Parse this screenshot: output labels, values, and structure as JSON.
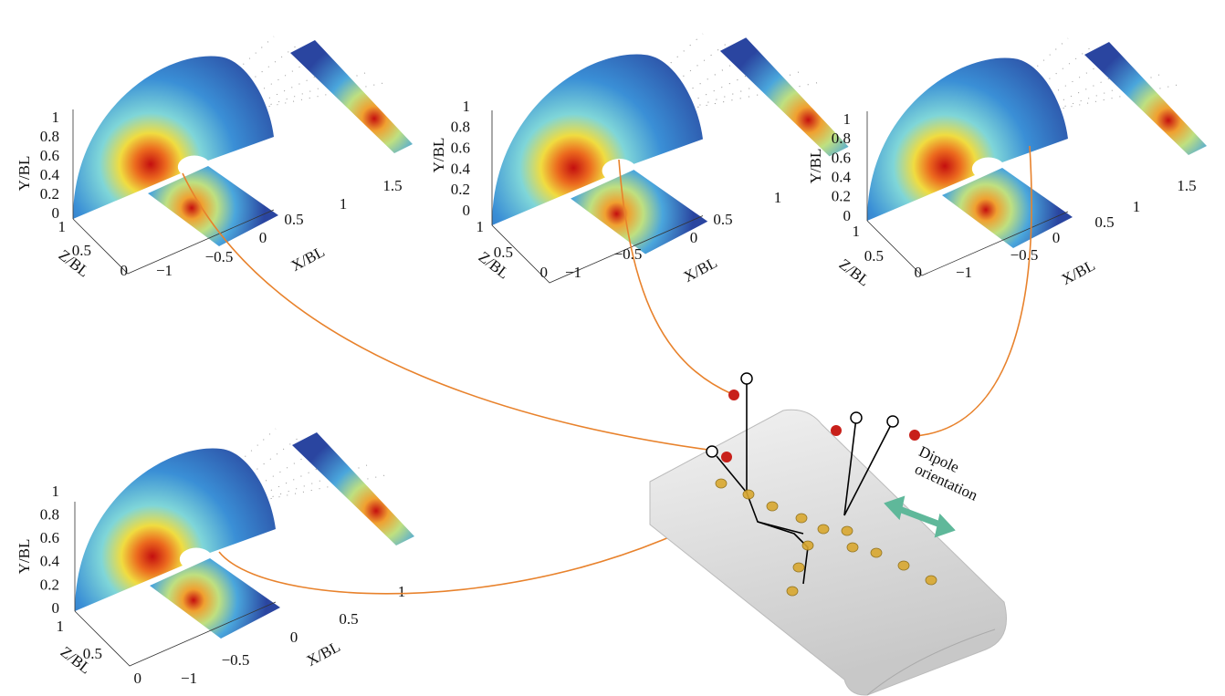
{
  "panels": [
    {
      "y_label": "Y/BL",
      "z_label": "Z/BL",
      "x_label": "X/BL",
      "y_ticks": [
        "0",
        "0.2",
        "0.4",
        "0.6",
        "0.8",
        "1"
      ],
      "z_ticks": [
        "1",
        "0.5",
        "0"
      ],
      "x_ticks": [
        "−1",
        "−0.5",
        "0",
        "0.5",
        "1",
        "1.5"
      ]
    },
    {
      "y_label": "Y/BL",
      "z_label": "Z/BL",
      "x_label": "X/BL",
      "y_ticks": [
        "0",
        "0.2",
        "0.4",
        "0.6",
        "0.8",
        "1"
      ],
      "z_ticks": [
        "1",
        "0.5",
        "0"
      ],
      "x_ticks": [
        "−1",
        "−0.5",
        "0",
        "0.5",
        "1"
      ]
    },
    {
      "y_label": "Y/BL",
      "z_label": "Z/BL",
      "x_label": "X/BL",
      "y_ticks": [
        "0",
        "0.2",
        "0.4",
        "0.6",
        "0.8",
        "1"
      ],
      "z_ticks": [
        "1",
        "0.5",
        "0"
      ],
      "x_ticks": [
        "−1",
        "−0.5",
        "0",
        "0.5",
        "1",
        "1.5"
      ]
    },
    {
      "y_label": "Y/BL",
      "z_label": "Z/BL",
      "x_label": "X/BL",
      "y_ticks": [
        "0",
        "0.2",
        "0.4",
        "0.6",
        "0.8",
        "1"
      ],
      "z_ticks": [
        "1",
        "0.5",
        "0"
      ],
      "x_ticks": [
        "−1",
        "−0.5",
        "0",
        "0.5",
        "1"
      ]
    }
  ],
  "annotation": [
    "Dipole",
    "orientation"
  ]
}
